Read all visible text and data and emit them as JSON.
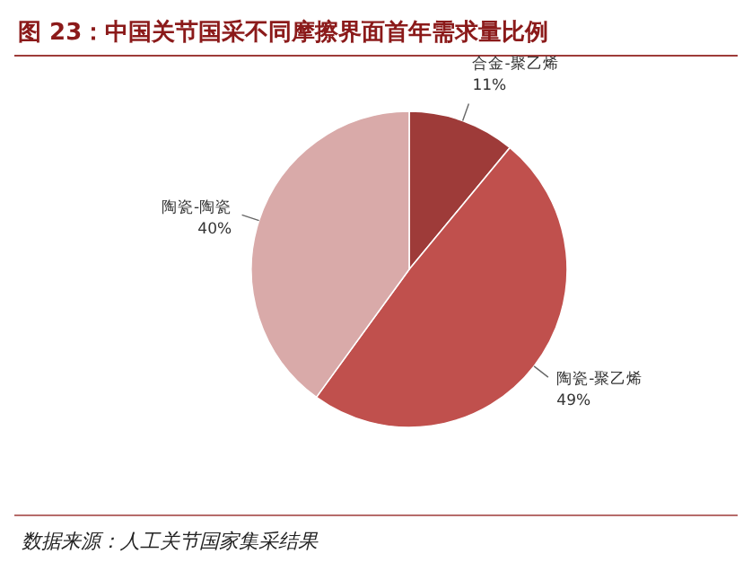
{
  "chart_data": {
    "type": "pie",
    "title": "图 23：中国关节国采不同摩擦界面首年需求量比例",
    "categories": [
      "合金-聚乙烯",
      "陶瓷-聚乙烯",
      "陶瓷-陶瓷"
    ],
    "values": [
      11,
      49,
      40
    ],
    "colors": [
      "#9e3b39",
      "#c0504d",
      "#d9aaa9"
    ],
    "value_labels": [
      "11%",
      "49%",
      "40%"
    ],
    "annotations": [
      "数据来源：人工关节国家集采结果"
    ]
  }
}
